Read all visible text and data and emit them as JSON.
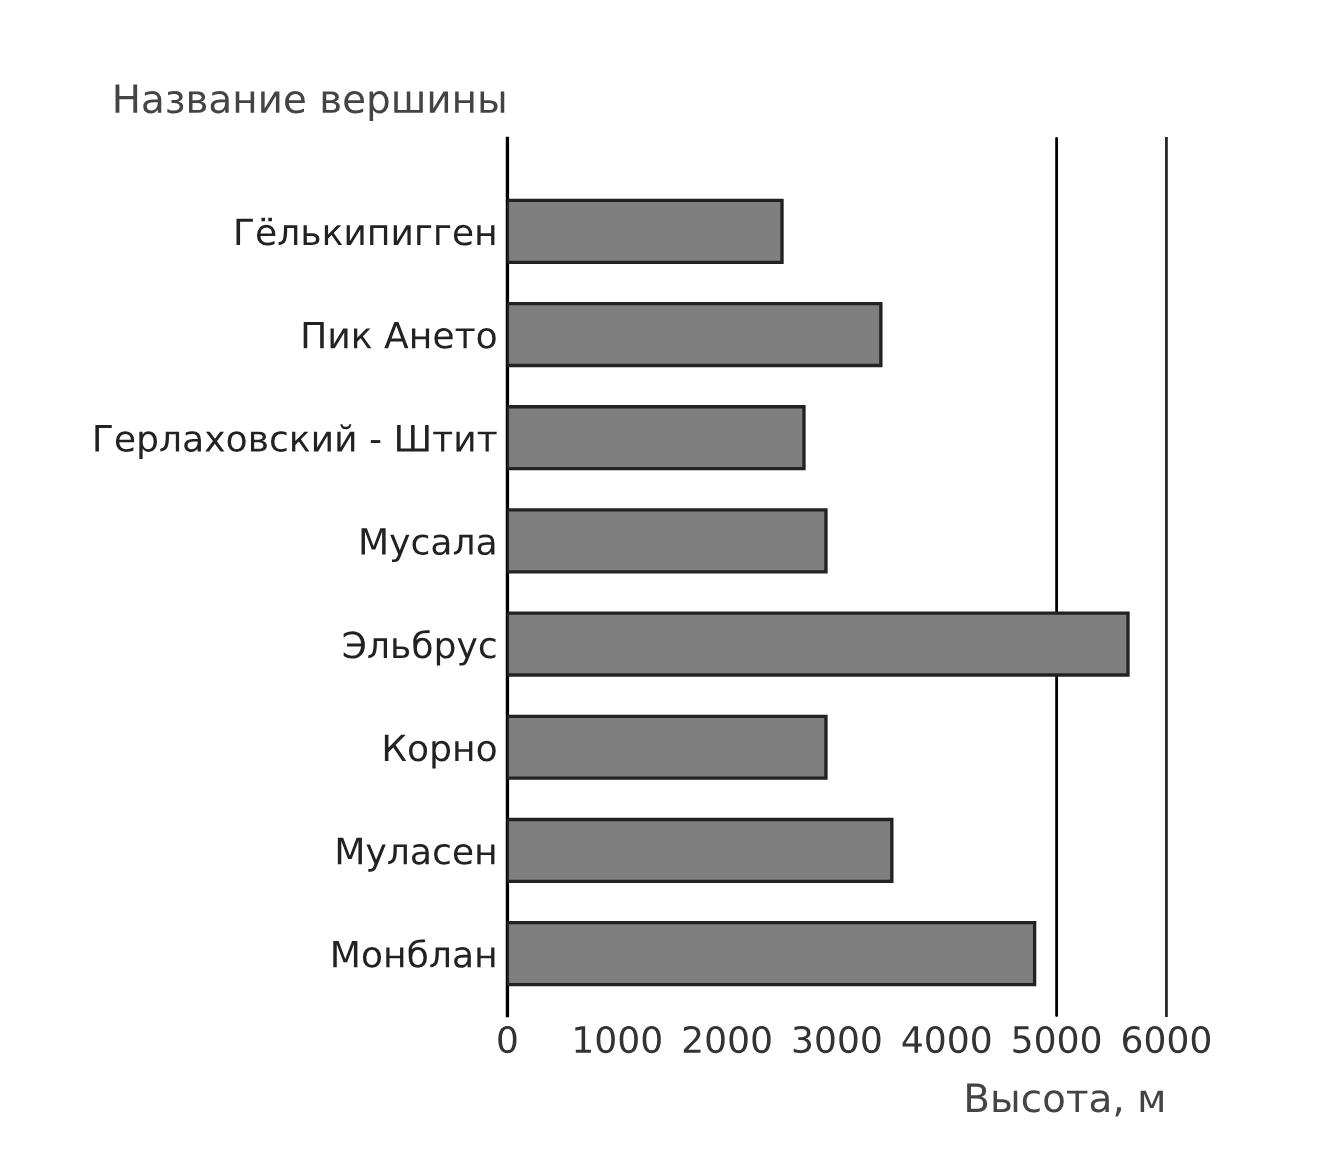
{
  "chart_data": {
    "type": "bar",
    "orientation": "horizontal",
    "xlabel": "Высота, м",
    "ylabel": "Название вершины",
    "categories": [
      "Гёлькипигген",
      "Пик Ането",
      "Герлаховский - Штит",
      "Мусала",
      "Эльбрус",
      "Корно",
      "Муласен",
      "Монблан"
    ],
    "values": [
      2500,
      3400,
      2700,
      2900,
      5650,
      2900,
      3500,
      4800
    ],
    "color": "#7f7f7f",
    "xlim": [
      0,
      6000
    ],
    "xticks": [
      0,
      1000,
      2000,
      3000,
      4000,
      5000,
      6000
    ],
    "ref_lines": [
      {
        "axis": "x",
        "value": 5000,
        "color": "#000000"
      }
    ],
    "grid": false,
    "legend": false
  }
}
